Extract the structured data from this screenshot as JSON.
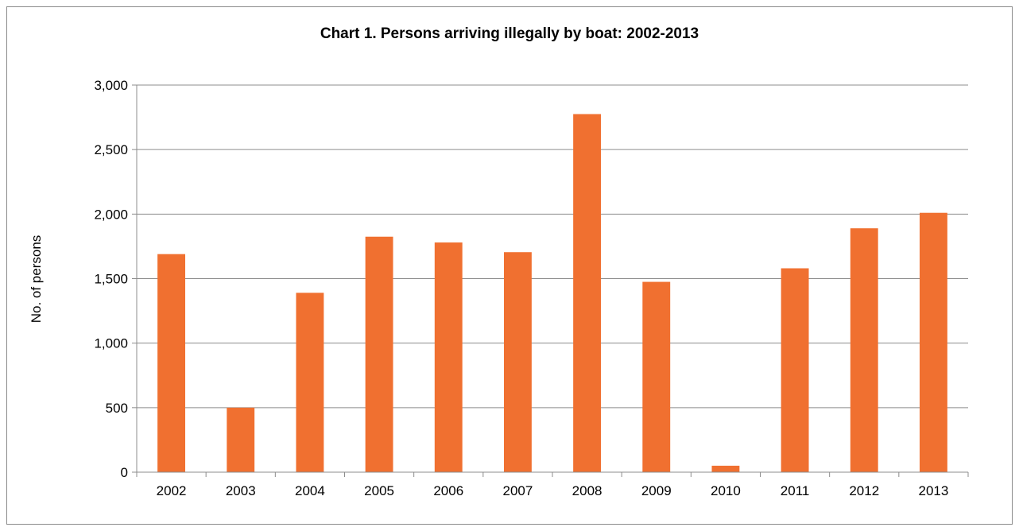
{
  "chart_data": {
    "type": "bar",
    "title": "Chart 1.  Persons arriving illegally by boat: 2002-2013",
    "xlabel": "",
    "ylabel": "No. of persons",
    "categories": [
      "2002",
      "2003",
      "2004",
      "2005",
      "2006",
      "2007",
      "2008",
      "2009",
      "2010",
      "2011",
      "2012",
      "2013"
    ],
    "values": [
      1690,
      500,
      1390,
      1825,
      1780,
      1705,
      2775,
      1475,
      50,
      1580,
      1890,
      2010
    ],
    "ylim": [
      0,
      3000
    ],
    "yticks": [
      0,
      500,
      1000,
      1500,
      2000,
      2500,
      3000
    ],
    "ytick_labels": [
      "0",
      "500",
      "1,000",
      "1,500",
      "2,000",
      "2,500",
      "3,000"
    ],
    "grid": true,
    "legend": "none",
    "bar_color": "#f07030"
  }
}
